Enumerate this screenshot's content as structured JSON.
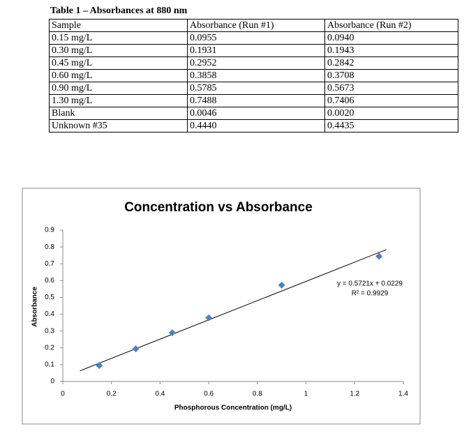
{
  "table": {
    "title": "Table 1 – Absorbances at 880 nm",
    "header": [
      "Sample",
      "Absorbance (Run #1)",
      "Absorbance (Run #2)"
    ],
    "rows": [
      [
        "0.15 mg/L",
        "0.0955",
        "0.0940"
      ],
      [
        "0.30 mg/L",
        "0.1931",
        "0.1943"
      ],
      [
        "0.45 mg/L",
        "0.2952",
        "0.2842"
      ],
      [
        "0.60 mg/L",
        "0.3858",
        "0.3708"
      ],
      [
        "0.90 mg/L",
        "0.5785",
        "0.5673"
      ],
      [
        "1.30 mg/L",
        "0.7488",
        "0.7406"
      ],
      [
        "Blank",
        "0.0046",
        "0.0020"
      ],
      [
        "Unknown #35",
        "0.4440",
        "0.4435"
      ]
    ]
  },
  "chart_data": {
    "type": "scatter",
    "title": "Concentration vs Absorbance",
    "x_label": "Phosphorous Concentration (mg/L)",
    "y_label": "Absorbance",
    "x": [
      0.15,
      0.3,
      0.45,
      0.6,
      0.9,
      1.3
    ],
    "values": [
      0.0948,
      0.1937,
      0.2897,
      0.3783,
      0.5729,
      0.7447
    ],
    "color": "#4f81bd",
    "trendline": {
      "x": [
        0.07,
        1.33
      ],
      "values": [
        0.063,
        0.784
      ]
    },
    "annotations": [
      "y = 0.5721x + 0.0229",
      "R² = 0.9929"
    ],
    "xlim": [
      0,
      1.4
    ],
    "xticks": [
      0,
      0.2,
      0.4,
      0.6,
      0.8,
      1,
      1.2,
      1.4
    ],
    "ylim": [
      0,
      0.9
    ],
    "yticks": [
      0,
      0.1,
      0.2,
      0.3,
      0.4,
      0.5,
      0.6,
      0.7,
      0.8,
      0.9
    ],
    "grid": false
  }
}
